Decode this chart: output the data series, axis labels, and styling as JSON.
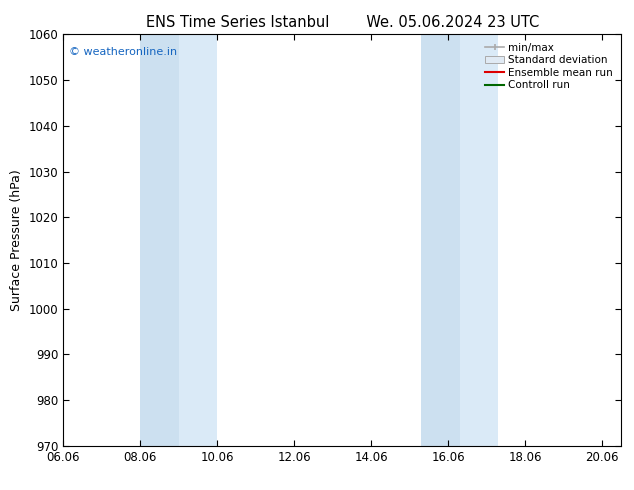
{
  "title_left": "ENS Time Series Istanbul",
  "title_right": "We. 05.06.2024 23 UTC",
  "ylabel": "Surface Pressure (hPa)",
  "xlabel": "",
  "ylim": [
    970,
    1060
  ],
  "yticks": [
    970,
    980,
    990,
    1000,
    1010,
    1020,
    1030,
    1040,
    1050,
    1060
  ],
  "xlim_min": 0.0,
  "xlim_max": 14.5,
  "xtick_labels": [
    "06.06",
    "08.06",
    "10.06",
    "12.06",
    "14.06",
    "16.06",
    "18.06",
    "20.06"
  ],
  "xtick_positions": [
    0.0,
    2.0,
    4.0,
    6.0,
    8.0,
    10.0,
    12.0,
    14.0
  ],
  "shaded_bands": [
    {
      "xmin": 2.0,
      "xmax": 3.0
    },
    {
      "xmin": 3.0,
      "xmax": 4.0
    },
    {
      "xmin": 9.3,
      "xmax": 10.3
    },
    {
      "xmin": 10.3,
      "xmax": 11.3
    }
  ],
  "band_colors": [
    "#cce0f0",
    "#daeaf7",
    "#cce0f0",
    "#daeaf7"
  ],
  "watermark": "© weatheronline.in",
  "watermark_color": "#1565c0",
  "legend_items": [
    {
      "label": "min/max",
      "color": "#aaaaaa"
    },
    {
      "label": "Standard deviation",
      "color": "#cccccc"
    },
    {
      "label": "Ensemble mean run",
      "color": "#dd0000"
    },
    {
      "label": "Controll run",
      "color": "#006600"
    }
  ],
  "background_color": "#ffffff",
  "title_fontsize": 10.5,
  "label_fontsize": 9,
  "tick_fontsize": 8.5
}
